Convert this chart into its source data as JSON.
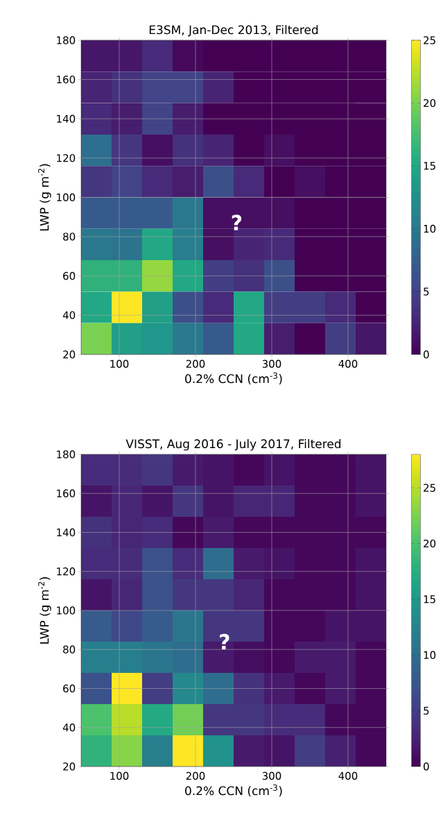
{
  "chart_data": [
    {
      "type": "heatmap",
      "title": "E3SM, Jan-Dec 2013, Filtered",
      "xlabel": "0.2% CCN (cm$^{-3}$)",
      "ylabel": "LWP (g m$^{-2}$)",
      "x": [
        70,
        110,
        150,
        190,
        230,
        270,
        310,
        350,
        390,
        430
      ],
      "y": [
        172,
        156,
        140,
        124,
        108,
        92,
        76,
        60,
        44,
        28
      ],
      "xlim": [
        50,
        450
      ],
      "ylim": [
        20,
        180
      ],
      "xticks": [
        100,
        200,
        300,
        400
      ],
      "yticks": [
        20,
        40,
        60,
        80,
        100,
        120,
        140,
        160,
        180
      ],
      "clim": [
        0,
        25
      ],
      "cticks": [
        0,
        5,
        10,
        15,
        20,
        25
      ],
      "grid": true,
      "annotations": [
        "?"
      ],
      "cells": [
        [
          1.5,
          1.5,
          3,
          0.5,
          0,
          0,
          0,
          0,
          0,
          0
        ],
        [
          2.5,
          3.5,
          5,
          5,
          2.5,
          0,
          0,
          0,
          0,
          0
        ],
        [
          3,
          2,
          5,
          2,
          0,
          0,
          0,
          0,
          0,
          0
        ],
        [
          9,
          4,
          1,
          3.5,
          2.5,
          0,
          1,
          0,
          0,
          0
        ],
        [
          4,
          5,
          3,
          2,
          6,
          3,
          0,
          1,
          0,
          0
        ],
        [
          7,
          7,
          7,
          10,
          1,
          1,
          1,
          0,
          0,
          0
        ],
        [
          10,
          9.5,
          15,
          10.5,
          1,
          2.5,
          3,
          0,
          0,
          0
        ],
        [
          16,
          16,
          21,
          15,
          4.5,
          3.5,
          6,
          0,
          0,
          0
        ],
        [
          15,
          25,
          14,
          6,
          3,
          15,
          4.5,
          4.5,
          3,
          0
        ],
        [
          20,
          14,
          13,
          10,
          7,
          15,
          2,
          0,
          4.5,
          1.5
        ]
      ]
    },
    {
      "type": "heatmap",
      "title": "VISST, Aug 2016 - July 2017, Filtered",
      "xlabel": "0.2% CCN (cm$^{-3}$)",
      "ylabel": "LWP (g m$^{-2}$)",
      "x": [
        70,
        110,
        150,
        190,
        230,
        270,
        310,
        350,
        390,
        430
      ],
      "y": [
        172,
        156,
        140,
        124,
        108,
        92,
        76,
        60,
        44,
        28
      ],
      "xlim": [
        50,
        450
      ],
      "ylim": [
        20,
        180
      ],
      "xticks": [
        100,
        200,
        300,
        400
      ],
      "yticks": [
        20,
        40,
        60,
        80,
        100,
        120,
        140,
        160,
        180
      ],
      "clim": [
        0,
        28
      ],
      "cticks": [
        0,
        5,
        10,
        15,
        20,
        25
      ],
      "grid": true,
      "annotations": [
        "?"
      ],
      "cells": [
        [
          3.5,
          3.5,
          4.5,
          2,
          1.5,
          0.5,
          1.5,
          0.5,
          0.5,
          1.5
        ],
        [
          1.5,
          3,
          1.5,
          4.5,
          1.5,
          3,
          3,
          0.5,
          0.5,
          1.5
        ],
        [
          4,
          3,
          3.5,
          0.5,
          2,
          0.5,
          0.5,
          0.5,
          0.5,
          0.5
        ],
        [
          3.5,
          3.5,
          7,
          3.5,
          10,
          2,
          1.5,
          0.5,
          0.5,
          1.5
        ],
        [
          1.5,
          3,
          7,
          4.5,
          4.5,
          3,
          0.5,
          0.5,
          0.5,
          1.5
        ],
        [
          8,
          6,
          8,
          11,
          4.5,
          4.5,
          0.5,
          0.5,
          1.5,
          1.5
        ],
        [
          12,
          12,
          11,
          10,
          2,
          1,
          0.5,
          2,
          2,
          0.5
        ],
        [
          7,
          28,
          5,
          13,
          10,
          4,
          2,
          0.5,
          2,
          0.5
        ],
        [
          20,
          25,
          17,
          22,
          4.5,
          4.5,
          3.5,
          3.5,
          0.5,
          0.5
        ],
        [
          18,
          23,
          12,
          28,
          14,
          2,
          1.5,
          5,
          2.5,
          0.5
        ]
      ]
    }
  ]
}
